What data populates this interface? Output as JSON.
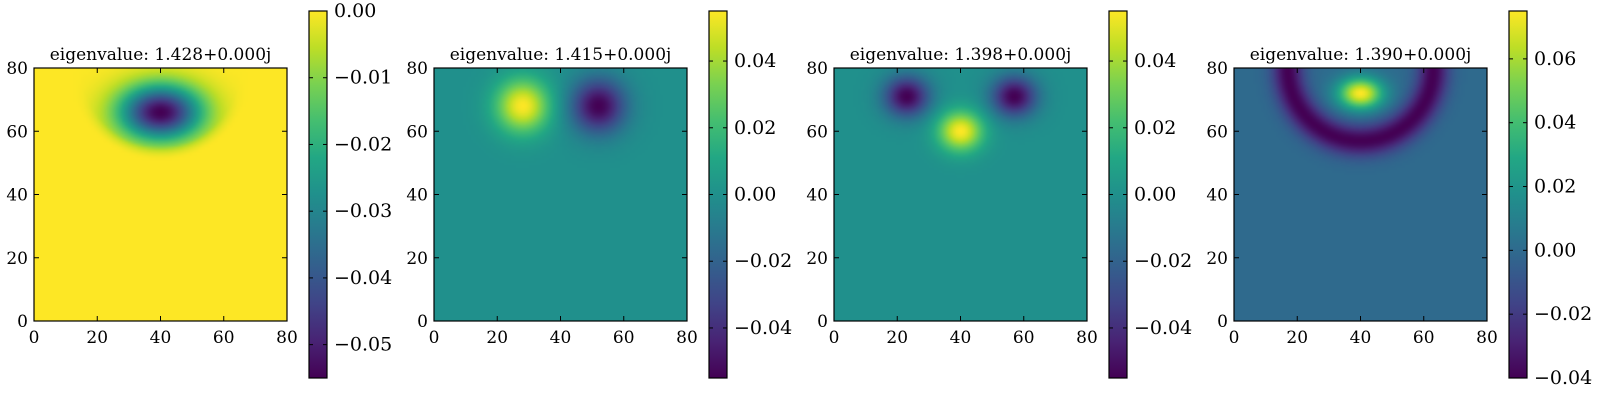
{
  "chart_data": [
    {
      "type": "heatmap",
      "title": "eigenvalue: 1.428+0.000j",
      "xlim": [
        0,
        80
      ],
      "ylim": [
        0,
        80
      ],
      "x_ticks": [
        0,
        20,
        40,
        60,
        80
      ],
      "y_ticks": [
        0,
        20,
        40,
        60,
        80
      ],
      "x_tick_labels": [
        "0",
        "20",
        "40",
        "60",
        "80"
      ],
      "y_tick_labels": [
        "0",
        "20",
        "40",
        "60",
        "80"
      ],
      "colormap": "viridis",
      "colorbar": {
        "range": [
          -0.055,
          0.0
        ],
        "ticks": [
          0.0,
          -0.01,
          -0.02,
          -0.03,
          -0.04,
          -0.05
        ],
        "tick_labels": [
          "0.00",
          "−0.01",
          "−0.02",
          "−0.03",
          "−0.04",
          "−0.05"
        ]
      },
      "background_value": 0.0,
      "blobs": [
        {
          "x": 40,
          "y": 66,
          "sx": 9,
          "sy": 6,
          "amp": -0.055
        }
      ],
      "mask": {
        "cx": 40,
        "cy": 80,
        "rx": 27,
        "ry": 27,
        "value": 0.0
      }
    },
    {
      "type": "heatmap",
      "title": "eigenvalue: 1.415+0.000j",
      "xlim": [
        0,
        80
      ],
      "ylim": [
        0,
        80
      ],
      "x_ticks": [
        0,
        20,
        40,
        60,
        80
      ],
      "y_ticks": [
        0,
        20,
        40,
        60,
        80
      ],
      "x_tick_labels": [
        "0",
        "20",
        "40",
        "60",
        "80"
      ],
      "y_tick_labels": [
        "0",
        "20",
        "40",
        "60",
        "80"
      ],
      "colormap": "viridis",
      "colorbar": {
        "range": [
          -0.055,
          0.055
        ],
        "ticks": [
          0.04,
          0.02,
          0.0,
          -0.02,
          -0.04
        ],
        "tick_labels": [
          "0.04",
          "0.02",
          "0.00",
          "−0.02",
          "−0.04"
        ]
      },
      "background_value": 0.0,
      "blobs": [
        {
          "x": 28,
          "y": 68,
          "sx": 6,
          "sy": 6,
          "amp": 0.055
        },
        {
          "x": 52,
          "y": 68,
          "sx": 6,
          "sy": 6,
          "amp": -0.055
        }
      ]
    },
    {
      "type": "heatmap",
      "title": "eigenvalue: 1.398+0.000j",
      "xlim": [
        0,
        80
      ],
      "ylim": [
        0,
        80
      ],
      "x_ticks": [
        0,
        20,
        40,
        60,
        80
      ],
      "y_ticks": [
        0,
        20,
        40,
        60,
        80
      ],
      "x_tick_labels": [
        "0",
        "20",
        "40",
        "60",
        "80"
      ],
      "y_tick_labels": [
        "0",
        "20",
        "40",
        "60",
        "80"
      ],
      "colormap": "viridis",
      "colorbar": {
        "range": [
          -0.055,
          0.055
        ],
        "ticks": [
          0.04,
          0.02,
          0.0,
          -0.02,
          -0.04
        ],
        "tick_labels": [
          "0.04",
          "0.02",
          "0.00",
          "−0.02",
          "−0.04"
        ]
      },
      "background_value": 0.0,
      "blobs": [
        {
          "x": 23,
          "y": 71,
          "sx": 5,
          "sy": 4.5,
          "amp": -0.055
        },
        {
          "x": 57,
          "y": 71,
          "sx": 5,
          "sy": 4.5,
          "amp": -0.055
        },
        {
          "x": 40,
          "y": 60,
          "sx": 5,
          "sy": 4.5,
          "amp": 0.055
        }
      ]
    },
    {
      "type": "heatmap",
      "title": "eigenvalue: 1.390+0.000j",
      "xlim": [
        0,
        80
      ],
      "ylim": [
        0,
        80
      ],
      "x_ticks": [
        0,
        20,
        40,
        60,
        80
      ],
      "y_ticks": [
        0,
        20,
        40,
        60,
        80
      ],
      "x_tick_labels": [
        "0",
        "20",
        "40",
        "60",
        "80"
      ],
      "y_tick_labels": [
        "0",
        "20",
        "40",
        "60",
        "80"
      ],
      "colormap": "viridis",
      "colorbar": {
        "range": [
          -0.04,
          0.075
        ],
        "ticks": [
          0.06,
          0.04,
          0.02,
          0.0,
          -0.02,
          -0.04
        ],
        "tick_labels": [
          "0.06",
          "0.04",
          "0.02",
          "0.00",
          "−0.02",
          "−0.04"
        ]
      },
      "background_value": 0.0,
      "blobs": [
        {
          "x": 40,
          "y": 72,
          "sx": 5,
          "sy": 3.5,
          "amp": 0.075
        }
      ],
      "rings": [
        {
          "cx": 40,
          "cy": 80,
          "r": 23,
          "width": 3.5,
          "amp": -0.04
        }
      ]
    }
  ]
}
